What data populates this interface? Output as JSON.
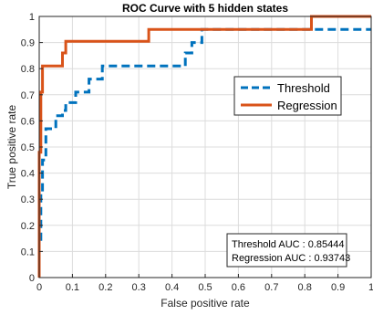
{
  "chart_data": {
    "type": "line",
    "title": "ROC Curve with 5 hidden states",
    "xlabel": "False positive rate",
    "ylabel": "True positive rate",
    "xlim": [
      0,
      1
    ],
    "ylim": [
      0,
      1
    ],
    "xticks": [
      0,
      0.1,
      0.2,
      0.3,
      0.4,
      0.5,
      0.6,
      0.7,
      0.8,
      0.9,
      1
    ],
    "xtick_labels": [
      "0",
      "0.1",
      "0.2",
      "0.3",
      "0.4",
      "0.5",
      "0.6",
      "0.7",
      "0.8",
      "0.9",
      "1"
    ],
    "yticks": [
      0,
      0.1,
      0.2,
      0.3,
      0.4,
      0.5,
      0.6,
      0.7,
      0.8,
      0.9,
      1
    ],
    "ytick_labels": [
      "0",
      "0.1",
      "0.2",
      "0.3",
      "0.4",
      "0.5",
      "0.6",
      "0.7",
      "0.8",
      "0.9",
      "1"
    ],
    "grid": true,
    "legend_position": "upper-right",
    "series": [
      {
        "name": "Threshold",
        "color": "#0072BD",
        "style": "dashed",
        "x": [
          0,
          0,
          0.005,
          0.005,
          0.01,
          0.01,
          0.02,
          0.02,
          0.05,
          0.05,
          0.07,
          0.07,
          0.08,
          0.08,
          0.11,
          0.11,
          0.15,
          0.15,
          0.19,
          0.19,
          0.44,
          0.44,
          0.46,
          0.46,
          0.49,
          0.49,
          0.82,
          0.82,
          1
        ],
        "y": [
          0,
          0.14,
          0.14,
          0.33,
          0.33,
          0.45,
          0.45,
          0.57,
          0.57,
          0.62,
          0.62,
          0.64,
          0.64,
          0.67,
          0.67,
          0.71,
          0.71,
          0.76,
          0.76,
          0.81,
          0.81,
          0.86,
          0.86,
          0.9,
          0.9,
          0.95,
          0.95,
          0.95,
          0.95
        ]
      },
      {
        "name": "Regression",
        "color": "#D95319",
        "style": "solid",
        "x": [
          0,
          0,
          0.005,
          0.005,
          0.01,
          0.01,
          0.07,
          0.07,
          0.08,
          0.08,
          0.33,
          0.33,
          0.82,
          0.82,
          1
        ],
        "y": [
          0,
          0.48,
          0.48,
          0.71,
          0.71,
          0.81,
          0.81,
          0.86,
          0.86,
          0.905,
          0.905,
          0.95,
          0.95,
          1,
          1
        ]
      }
    ],
    "annotations": [
      "Threshold AUC : 0.85444",
      "Regression AUC : 0.93743"
    ]
  }
}
